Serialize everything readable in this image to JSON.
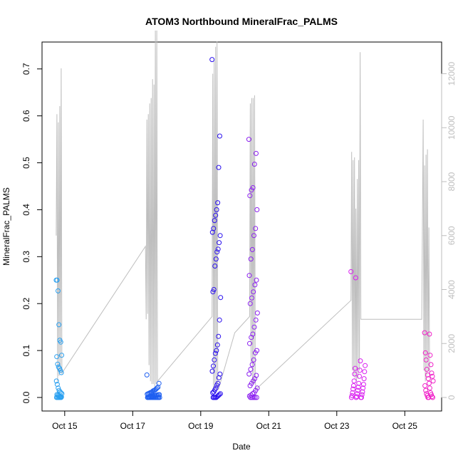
{
  "chart_data": {
    "type": "scatter",
    "title": "ATOM3 Northbound MineralFrac_PALMS",
    "xlabel": "Date",
    "ylabel": "MineralFrac_PALMS",
    "xlim": [
      "2017-10-14 08:00",
      "2017-10-26 02:00"
    ],
    "ylim": [
      0,
      0.73
    ],
    "y2lim": [
      0,
      12700
    ],
    "x_ticks": [
      {
        "date": "2017-10-15",
        "label": "Oct 15"
      },
      {
        "date": "2017-10-17",
        "label": "Oct 17"
      },
      {
        "date": "2017-10-19",
        "label": "Oct 19"
      },
      {
        "date": "2017-10-21",
        "label": "Oct 21"
      },
      {
        "date": "2017-10-23",
        "label": "Oct 23"
      },
      {
        "date": "2017-10-25",
        "label": "Oct 25"
      }
    ],
    "y_ticks": [
      "0.0",
      "0.1",
      "0.2",
      "0.3",
      "0.4",
      "0.5",
      "0.6",
      "0.7"
    ],
    "y2_ticks": [
      "0",
      "2000",
      "4000",
      "6000",
      "8000",
      "10000",
      "12000"
    ],
    "series": [
      {
        "color": "#2AA0F0",
        "t_start": "2017-10-14 18:00",
        "t_end": "2017-10-14 22:00",
        "points": [
          0.25,
          0.25,
          0.227,
          0.155,
          0.122,
          0.118,
          0.09,
          0.087,
          0.071,
          0.065,
          0.062,
          0.058,
          0.053,
          0.035,
          0.028,
          0.02,
          0.015,
          0.012,
          0.01,
          0.008,
          0.006,
          0.005,
          0.004,
          0.003,
          0.002,
          0.001,
          0,
          0,
          0,
          0,
          0,
          0
        ]
      },
      {
        "color": "#1E5FF0",
        "t_start": "2017-10-17 10:00",
        "t_end": "2017-10-17 19:00",
        "points": [
          0.048,
          0.03,
          0.022,
          0.02,
          0.018,
          0.016,
          0.015,
          0.014,
          0.012,
          0.011,
          0.01,
          0.009,
          0.008,
          0.007,
          0.006,
          0.006,
          0.005,
          0.005,
          0.004,
          0.004,
          0.003,
          0.003,
          0.002,
          0.002,
          0.001,
          0.001,
          0,
          0,
          0,
          0,
          0,
          0,
          0,
          0,
          0,
          0,
          0,
          0,
          0,
          0
        ]
      },
      {
        "color": "#2A10EE",
        "t_start": "2017-10-19 08:00",
        "t_end": "2017-10-19 14:00",
        "points": [
          0.72,
          0.557,
          0.49,
          0.415,
          0.4,
          0.388,
          0.377,
          0.36,
          0.352,
          0.345,
          0.33,
          0.316,
          0.31,
          0.295,
          0.28,
          0.23,
          0.225,
          0.213,
          0.165,
          0.13,
          0.112,
          0.1,
          0.094,
          0.08,
          0.067,
          0.056,
          0.05,
          0.042,
          0.03,
          0.026,
          0.02,
          0.016,
          0.012,
          0.01,
          0.008,
          0.006,
          0.004,
          0.002,
          0,
          0,
          0,
          0
        ]
      },
      {
        "color": "#8C20F0",
        "t_start": "2017-10-20 10:00",
        "t_end": "2017-10-20 16:00",
        "points": [
          0.55,
          0.52,
          0.497,
          0.447,
          0.442,
          0.43,
          0.4,
          0.36,
          0.345,
          0.315,
          0.295,
          0.26,
          0.25,
          0.24,
          0.225,
          0.212,
          0.2,
          0.18,
          0.165,
          0.15,
          0.135,
          0.128,
          0.115,
          0.1,
          0.095,
          0.08,
          0.07,
          0.06,
          0.05,
          0.047,
          0.04,
          0.035,
          0.03,
          0.025,
          0.02,
          0.015,
          0.01,
          0.008,
          0.005,
          0.003,
          0,
          0,
          0,
          0,
          0
        ]
      },
      {
        "color": "#D91EF0",
        "t_start": "2017-10-23 10:00",
        "t_end": "2017-10-23 20:00",
        "points": [
          0.268,
          0.255,
          0.078,
          0.068,
          0.062,
          0.058,
          0.055,
          0.05,
          0.045,
          0.04,
          0.035,
          0.03,
          0.028,
          0.025,
          0.022,
          0.02,
          0.018,
          0.015,
          0.012,
          0.01,
          0.008,
          0.006,
          0.004,
          0.002,
          0,
          0,
          0,
          0
        ]
      },
      {
        "color": "#F020C8",
        "t_start": "2017-10-25 14:00",
        "t_end": "2017-10-25 20:00",
        "points": [
          0.138,
          0.135,
          0.095,
          0.09,
          0.08,
          0.07,
          0.06,
          0.052,
          0.048,
          0.045,
          0.04,
          0.035,
          0.03,
          0.025,
          0.02,
          0.015,
          0.01,
          0.008,
          0.006,
          0.004,
          0.002,
          0,
          0,
          0
        ]
      }
    ],
    "secondary_line": {
      "color": "#bebebe",
      "points": [
        [
          "2017-10-14 18:00",
          6000
        ],
        [
          "2017-10-14 18:30",
          10500
        ],
        [
          "2017-10-14 19:00",
          600
        ],
        [
          "2017-10-14 19:30",
          10200
        ],
        [
          "2017-10-14 20:00",
          800
        ],
        [
          "2017-10-14 20:30",
          10800
        ],
        [
          "2017-10-14 21:00",
          900
        ],
        [
          "2017-10-14 21:30",
          12200
        ],
        [
          "2017-10-14 22:00",
          900
        ],
        [
          "2017-10-17 09:00",
          5600
        ],
        [
          "2017-10-17 09:30",
          2900
        ],
        [
          "2017-10-17 10:00",
          10300
        ],
        [
          "2017-10-17 10:30",
          3100
        ],
        [
          "2017-10-17 11:00",
          10500
        ],
        [
          "2017-10-17 11:30",
          1200
        ],
        [
          "2017-10-17 12:00",
          10900
        ],
        [
          "2017-10-17 12:30",
          600
        ],
        [
          "2017-10-17 13:00",
          11100
        ],
        [
          "2017-10-17 13:30",
          500
        ],
        [
          "2017-10-17 14:00",
          11800
        ],
        [
          "2017-10-17 14:30",
          500
        ],
        [
          "2017-10-17 15:00",
          11600
        ],
        [
          "2017-10-17 15:30",
          400
        ],
        [
          "2017-10-17 16:00",
          13600
        ],
        [
          "2017-10-17 16:30",
          500
        ],
        [
          "2017-10-17 17:00",
          13600
        ],
        [
          "2017-10-17 17:30",
          600
        ],
        [
          "2017-10-19 08:00",
          3000
        ],
        [
          "2017-10-19 08:30",
          12000
        ],
        [
          "2017-10-19 09:00",
          200
        ],
        [
          "2017-10-19 09:30",
          12500
        ],
        [
          "2017-10-19 10:00",
          300
        ],
        [
          "2017-10-19 10:30",
          13000
        ],
        [
          "2017-10-19 11:00",
          400
        ],
        [
          "2017-10-19 11:30",
          13200
        ],
        [
          "2017-10-19 12:00",
          300
        ],
        [
          "2017-10-19 12:30",
          300
        ],
        [
          "2017-10-20 00:00",
          2400
        ],
        [
          "2017-10-20 10:30",
          3000
        ],
        [
          "2017-10-20 11:00",
          10900
        ],
        [
          "2017-10-20 11:30",
          1300
        ],
        [
          "2017-10-20 12:00",
          11100
        ],
        [
          "2017-10-20 12:30",
          500
        ],
        [
          "2017-10-20 13:00",
          11100
        ],
        [
          "2017-10-20 13:30",
          500
        ],
        [
          "2017-10-20 14:00",
          11200
        ],
        [
          "2017-10-20 14:30",
          600
        ],
        [
          "2017-10-20 15:00",
          300
        ],
        [
          "2017-10-23 10:00",
          3600
        ],
        [
          "2017-10-23 10:30",
          9100
        ],
        [
          "2017-10-23 11:00",
          1000
        ],
        [
          "2017-10-23 11:30",
          8800
        ],
        [
          "2017-10-23 12:00",
          800
        ],
        [
          "2017-10-23 12:30",
          8900
        ],
        [
          "2017-10-23 13:00",
          700
        ],
        [
          "2017-10-23 13:30",
          7000
        ],
        [
          "2017-10-23 14:00",
          600
        ],
        [
          "2017-10-23 14:30",
          8100
        ],
        [
          "2017-10-23 15:00",
          700
        ],
        [
          "2017-10-23 15:30",
          8800
        ],
        [
          "2017-10-23 16:00",
          1000
        ],
        [
          "2017-10-23 16:30",
          12800
        ],
        [
          "2017-10-23 17:00",
          2900
        ],
        [
          "2017-10-25 12:00",
          2900
        ],
        [
          "2017-10-25 13:00",
          10300
        ],
        [
          "2017-10-25 13:30",
          1000
        ],
        [
          "2017-10-25 14:00",
          8600
        ],
        [
          "2017-10-25 14:30",
          600
        ],
        [
          "2017-10-25 15:00",
          9000
        ],
        [
          "2017-10-25 15:30",
          800
        ],
        [
          "2017-10-25 16:00",
          9200
        ],
        [
          "2017-10-25 16:30",
          1000
        ],
        [
          "2017-10-25 17:00",
          6300
        ],
        [
          "2017-10-25 17:30",
          800
        ]
      ]
    }
  }
}
